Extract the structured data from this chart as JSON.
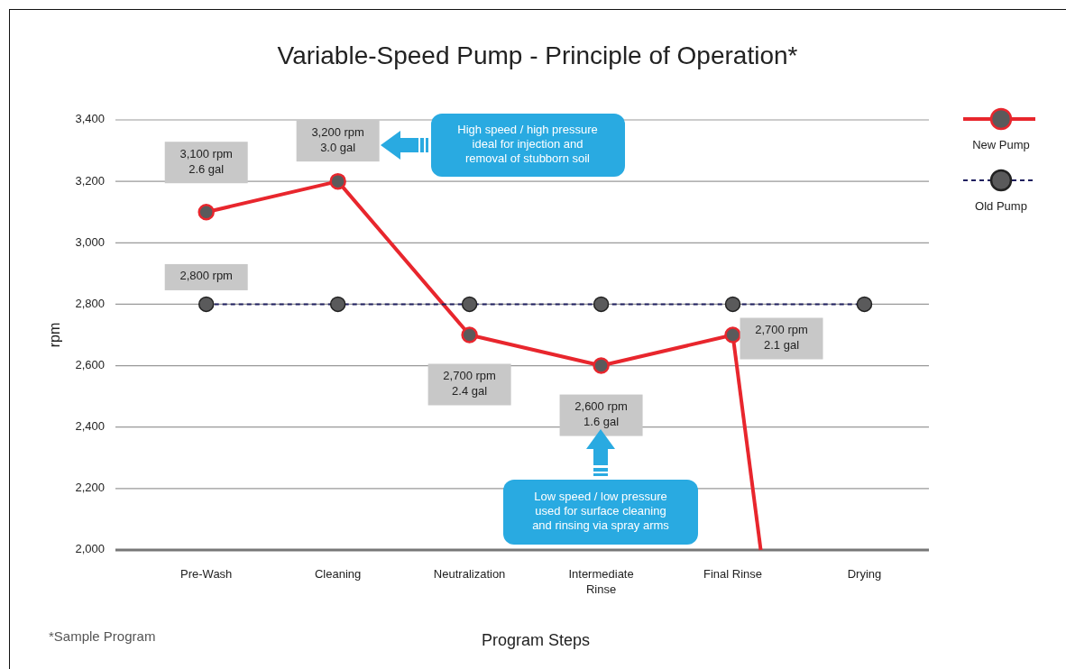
{
  "chart_data": {
    "type": "line",
    "title": "Variable-Speed Pump - Principle of Operation*",
    "xlabel": "Program Steps",
    "ylabel": "rpm",
    "categories": [
      "Pre-Wash",
      "Cleaning",
      "Neutralization",
      "Intermediate Rinse",
      "Final Rinse",
      "Drying"
    ],
    "ylim": [
      2000,
      3400
    ],
    "yticks": [
      {
        "value": 2000,
        "label": "2,000"
      },
      {
        "value": 2200,
        "label": "2,200"
      },
      {
        "value": 2400,
        "label": "2,400"
      },
      {
        "value": 2600,
        "label": "2,600"
      },
      {
        "value": 2800,
        "label": "2,800"
      },
      {
        "value": 3000,
        "label": "3,000"
      },
      {
        "value": 3200,
        "label": "3,200"
      },
      {
        "value": 3400,
        "label": "3,400"
      }
    ],
    "grid": "y",
    "legend": "top right",
    "series": [
      {
        "name": "New Pump",
        "color": "#e8262d",
        "marker": "circle",
        "line_style": "solid",
        "values": [
          3100,
          3200,
          2700,
          2600,
          2700,
          null
        ],
        "value_labels": [
          "3,100 rpm\n2.6 gal",
          "3,200 rpm\n3.0 gal",
          "2,700 rpm\n2.4 gal",
          "2,600 rpm\n1.6 gal",
          "2,700 rpm\n2.1 gal",
          null
        ]
      },
      {
        "name": "Old Pump",
        "color": "#1f1f5e",
        "marker": "circle",
        "line_style": "dashed",
        "values": [
          2800,
          2800,
          2800,
          2800,
          2800,
          2800
        ],
        "value_labels": [
          "2,800 rpm",
          null,
          null,
          null,
          null,
          null
        ]
      }
    ],
    "annotations": [
      "High speed / high pressure\nideal for injection and\nremoval of stubborn soil",
      "Low speed / low pressure\nused for surface cleaning\nand rinsing via spray arms",
      "*Sample Program"
    ]
  }
}
